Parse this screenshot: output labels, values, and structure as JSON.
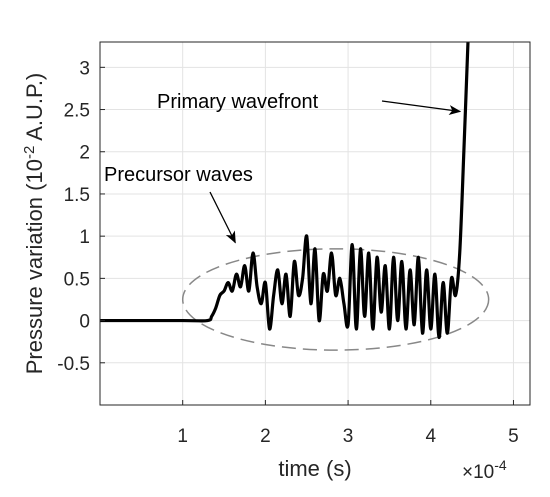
{
  "chart_data": {
    "type": "line",
    "xlabel": "time (s)",
    "ylabel_text": "Pressure variation (10",
    "ylabel_sup": "-2",
    "ylabel_unit": " A.U.P.)",
    "x_multiplier_base": "×10",
    "x_multiplier_exp": "-4",
    "xlim": [
      0,
      5.2
    ],
    "ylim": [
      -1,
      3.3
    ],
    "xticks": [
      1,
      2,
      3,
      4,
      5
    ],
    "yticks": [
      -0.5,
      0,
      0.5,
      1,
      1.5,
      2,
      2.5,
      3
    ],
    "xtick_labels": [
      "1",
      "2",
      "3",
      "4",
      "5"
    ],
    "ytick_labels": [
      "-0.5",
      "0",
      "0.5",
      "1",
      "1.5",
      "2",
      "2.5",
      "3"
    ],
    "grid": true,
    "series": [
      {
        "color": "#000000",
        "x": [
          0.0,
          1.0,
          1.3,
          1.35,
          1.4,
          1.45,
          1.5,
          1.55,
          1.6,
          1.65,
          1.7,
          1.75,
          1.8,
          1.85,
          1.9,
          1.95,
          2.0,
          2.05,
          2.1,
          2.15,
          2.2,
          2.25,
          2.3,
          2.35,
          2.4,
          2.45,
          2.5,
          2.55,
          2.6,
          2.65,
          2.7,
          2.75,
          2.8,
          2.85,
          2.9,
          2.95,
          3.0,
          3.05,
          3.1,
          3.15,
          3.2,
          3.25,
          3.3,
          3.35,
          3.4,
          3.45,
          3.5,
          3.55,
          3.6,
          3.65,
          3.7,
          3.75,
          3.8,
          3.85,
          3.9,
          3.95,
          4.0,
          4.05,
          4.1,
          4.15,
          4.2,
          4.25,
          4.3,
          4.35,
          4.4,
          4.45
        ],
        "y": [
          0.0,
          0.0,
          0.0,
          0.05,
          0.15,
          0.3,
          0.35,
          0.45,
          0.35,
          0.55,
          0.4,
          0.65,
          0.35,
          0.8,
          0.4,
          0.2,
          0.45,
          -0.1,
          0.3,
          0.6,
          0.2,
          0.55,
          0.05,
          0.7,
          0.3,
          0.5,
          1.0,
          0.2,
          0.85,
          0.0,
          0.55,
          0.35,
          0.8,
          0.3,
          0.5,
          0.2,
          -0.05,
          0.9,
          -0.1,
          0.85,
          0.05,
          0.8,
          -0.1,
          0.75,
          0.1,
          0.65,
          -0.1,
          0.75,
          0.0,
          0.7,
          -0.1,
          0.6,
          -0.05,
          0.75,
          -0.15,
          0.6,
          -0.1,
          0.55,
          -0.2,
          0.45,
          -0.15,
          0.5,
          0.3,
          0.8,
          2.0,
          3.3
        ]
      }
    ],
    "annotations": [
      {
        "text": "Primary wavefront",
        "target_x": 4.38,
        "target_y": 2.5
      },
      {
        "text": "Precursor waves",
        "target_x": 1.6,
        "target_y": 0.9
      }
    ],
    "ellipse": {
      "cx": 2.85,
      "cy": 0.25,
      "rx": 1.85,
      "ry": 0.6,
      "color": "#888888",
      "dashed": true
    }
  }
}
